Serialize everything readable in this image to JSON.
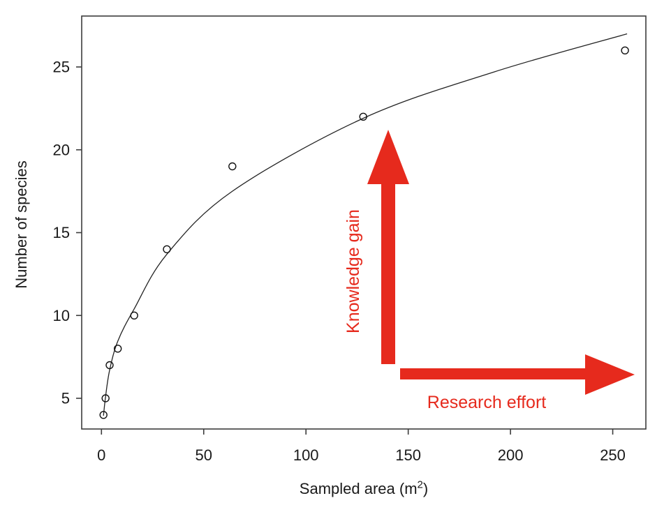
{
  "colors": {
    "background": "#ffffff",
    "accent_red": "#e62a1d",
    "axis": "#3c3c3c",
    "text": "#1a1a1a",
    "curve": "#222222",
    "point": "#111111"
  },
  "chart_data": {
    "type": "scatter",
    "title": "",
    "xlabel": "Sampled area (m²)",
    "xlabel_parts": {
      "main": "Sampled area (m",
      "sup": "2",
      "close": ")"
    },
    "ylabel": "Number of species",
    "x_ticks": [
      0,
      50,
      100,
      150,
      200,
      250
    ],
    "y_ticks": [
      5,
      10,
      15,
      20,
      25
    ],
    "xlim": [
      -9.6,
      266.3
    ],
    "ylim": [
      3.1,
      28.1
    ],
    "grid": false,
    "legend": "none",
    "points": [
      {
        "x": 1,
        "y": 4
      },
      {
        "x": 2,
        "y": 5
      },
      {
        "x": 4,
        "y": 7
      },
      {
        "x": 8,
        "y": 8
      },
      {
        "x": 16,
        "y": 10
      },
      {
        "x": 32,
        "y": 14
      },
      {
        "x": 64,
        "y": 19
      },
      {
        "x": 128,
        "y": 22
      },
      {
        "x": 256,
        "y": 26
      }
    ],
    "curve": {
      "description": "species-area fitted curve",
      "samples": [
        {
          "x": 1,
          "y": 3.95
        },
        {
          "x": 2,
          "y": 5.1
        },
        {
          "x": 4,
          "y": 6.7
        },
        {
          "x": 8,
          "y": 8.45
        },
        {
          "x": 16,
          "y": 10.4
        },
        {
          "x": 32,
          "y": 13.7
        },
        {
          "x": 64,
          "y": 17.5
        },
        {
          "x": 128,
          "y": 21.9
        },
        {
          "x": 192,
          "y": 24.7
        },
        {
          "x": 257,
          "y": 27.0
        }
      ]
    },
    "annotations": [
      {
        "id": "knowledge-gain",
        "label": "Knowledge gain",
        "direction": "up"
      },
      {
        "id": "research-effort",
        "label": "Research effort",
        "direction": "right"
      }
    ]
  }
}
